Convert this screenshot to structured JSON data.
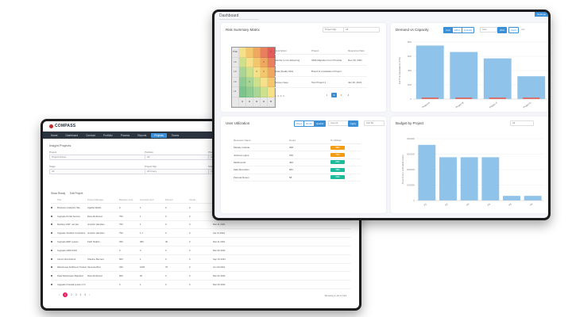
{
  "projects_window": {
    "logo": "COMPASS",
    "nav": [
      "Home",
      "Dashboard",
      "Conduct",
      "Portfolio",
      "Process",
      "Reports",
      "Projects",
      "Teams"
    ],
    "active_nav_index": 6,
    "breadcrumb": "Insight Projects",
    "filters": [
      {
        "label": "Project",
        "value": "Project Name"
      },
      {
        "label": "Portfolio",
        "value": "All"
      },
      {
        "label": "Program",
        "value": "All"
      },
      {
        "label": "Stage",
        "value": "All"
      },
      {
        "label": "Project Mgr",
        "value": "All Users"
      },
      {
        "label": "Start",
        "value": "All"
      }
    ],
    "tools": [
      "Show Ready",
      "Edit Project"
    ],
    "columns": [
      "",
      "Title",
      "Project Manager",
      "Baseline Cost",
      "Forecast Cost",
      "Percent",
      "Actual",
      "Remaining",
      "Actual End Date",
      "Forecast",
      "Baseline"
    ],
    "rows": [
      [
        "",
        "Business Analytics Site",
        "Agatha Walsh",
        "0",
        "1",
        "0",
        "0",
        "Feb 13 2021",
        "",
        "",
        ""
      ],
      [
        "",
        "Upgrade Portal Service",
        "Dave Robinson",
        "750",
        "1",
        "0",
        "0",
        "Apr 13 2021",
        "",
        "",
        ""
      ],
      [
        "",
        "Replace ASP .net site",
        "Jennifer Hamilton",
        "750",
        "1",
        "0",
        "0",
        "Mar 11 2021",
        "",
        "",
        ""
      ],
      [
        "",
        "Upgrade SCADA Controllers",
        "Jennifer Hamilton",
        "750",
        "1.7",
        "0",
        "0",
        "Apr 11 2021",
        "",
        "",
        ""
      ],
      [
        "",
        "Upgrade ERP system",
        "Faith Mullins",
        "250",
        "380",
        "40",
        "0",
        "Mar 11 2021",
        "",
        "",
        ""
      ],
      [
        "",
        "Upgrade CRM 2019",
        "",
        "0",
        "0",
        "0",
        "0",
        "Mar 30 2021",
        "",
        "",
        ""
      ],
      [
        "",
        "Cloud Infra Rollout",
        "Shanice Bennett",
        "500",
        "1",
        "0",
        "0",
        "Sep 15 2021",
        "",
        "",
        ""
      ],
      [
        "",
        "Warehouse Fulfilment Tracker",
        "Vanessa Bird",
        "330",
        "1000",
        "76",
        "0",
        "Jun 30 2021",
        "",
        "",
        ""
      ],
      [
        "",
        "Data Warehouse Migration",
        "Dave Robinson",
        "500",
        "92",
        "0",
        "0",
        "Mar 22 2021",
        "",
        "",
        ""
      ],
      [
        "",
        "Upgrade Firewall system 2.0",
        "",
        "0",
        "1",
        "0",
        "0",
        "Mar 25 2021",
        "",
        "",
        ""
      ]
    ],
    "pagination": {
      "pages": [
        "1",
        "2",
        "3",
        "4",
        "5"
      ],
      "current": "1"
    },
    "rows_info": "Showing 1-10 of 124"
  },
  "dashboard": {
    "title": "Dashboard",
    "badge": "Settings",
    "risk_card": {
      "title": "Risk Summary Matrix",
      "select_1": "Project Mgr",
      "select_2": "All",
      "matrix_cells": [
        "Prob",
        "",
        "",
        "",
        "",
        "1",
        "L4",
        "",
        "",
        "",
        "2",
        "",
        "L3",
        "",
        "",
        "4",
        "2",
        "",
        "L2",
        "",
        "1",
        "",
        "",
        "",
        "L1",
        "",
        "",
        "",
        "",
        "",
        "",
        "I1",
        "I2",
        "I3",
        "I4",
        "I5"
      ],
      "matrix_colors": [
        "#e8e8e8",
        "#f6e08a",
        "#f4c76e",
        "#f0a860",
        "#ea7f5e",
        "#e45c5c",
        "#e8e8e8",
        "#cde08c",
        "#f6e08a",
        "#f4c76e",
        "#f0a860",
        "#ea7f5e",
        "#e8e8e8",
        "#a9d596",
        "#cde08c",
        "#f6e08a",
        "#f4c76e",
        "#f0a860",
        "#e8e8e8",
        "#8fcc92",
        "#a9d596",
        "#cde08c",
        "#f6e08a",
        "#f4c76e",
        "#e8e8e8",
        "#7cc48b",
        "#8fcc92",
        "#a9d596",
        "#cde08c",
        "#f6e08a",
        "#e8e8e8",
        "#e8e8e8",
        "#e8e8e8",
        "#e8e8e8",
        "#e8e8e8",
        "#e8e8e8"
      ],
      "columns": [
        "Description",
        "Project",
        "Response Date"
      ],
      "rows": [
        [
          "Vendor is not delivering",
          "SMS Migration from Provider",
          "Dec 30, 2021"
        ],
        [
          "Data Quality Risk",
          "Brand & Localisation Project",
          ""
        ],
        [
          "Scope creep",
          "Test Project 1",
          "Jan 20, 2021"
        ]
      ],
      "footer": "1, 2, 3, 4",
      "pages": [
        "1",
        "2",
        "3",
        "4"
      ]
    },
    "demand_card": {
      "title": "Demand vs Capacity",
      "toggles": [
        "Cost",
        "Effort",
        "Quantity"
      ],
      "select": "Year",
      "year_select": "2021",
      "action": "Apply",
      "other": "Abc"
    },
    "util_card": {
      "title": "User Utilization",
      "toggles": [
        "Week",
        "Month",
        "Quarter"
      ],
      "select": "Year 21",
      "apply": "Apply",
      "extra": "Sort By",
      "columns": [
        "Resource Name",
        "Hours",
        "% Utilized"
      ],
      "rows": [
        [
          "Melody Gutride",
          "258",
          "88%",
          "#f39c12"
        ],
        [
          "Joshua Logins",
          "784",
          "74%",
          "#f39c12"
        ],
        [
          "Muffinsmith",
          "452",
          "60%",
          "#1abc9c"
        ],
        [
          "Matt Mcmahon",
          "681",
          "68%",
          "#1abc9c"
        ],
        [
          "Pamela Rosen",
          "58",
          "50%",
          "#1abc9c"
        ]
      ]
    },
    "budget_card": {
      "title": "Budget by Project",
      "select": "All"
    }
  },
  "chart_data": [
    {
      "type": "bar",
      "title": "Demand vs Capacity",
      "categories": [
        "Project A",
        "Project B",
        "Project C",
        "Project D"
      ],
      "series": [
        {
          "name": "Capacity",
          "values": [
            750,
            660,
            570,
            320
          ]
        },
        {
          "name": "Demand",
          "values": [
            20,
            20,
            20,
            20
          ]
        }
      ],
      "yticks": [
        "0",
        "200",
        "400",
        "600",
        "800"
      ],
      "ylim": [
        0,
        800
      ],
      "ylabel": "Full Time Equivalents (FTE)",
      "colors": [
        "#8fc3ea",
        "#e05a4e"
      ]
    },
    {
      "type": "bar",
      "title": "Budget by Project",
      "categories": [
        "P1",
        "P2",
        "P3",
        "P4",
        "P5",
        "P6"
      ],
      "values": [
        360000,
        280000,
        280000,
        280000,
        30000,
        30000
      ],
      "yticks": [
        "0",
        "100000",
        "200000",
        "300000",
        "400000"
      ],
      "ylim": [
        0,
        400000
      ],
      "ylabel": "Amount (inc. estimated costs)",
      "colors": [
        "#8fc3ea"
      ]
    }
  ]
}
